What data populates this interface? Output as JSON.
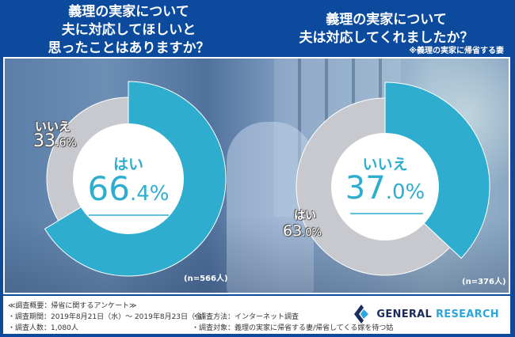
{
  "left_chart": {
    "title_lines": [
      "義理の実家について",
      "夫に対応してほしいと",
      "思ったことはありますか？"
    ],
    "highlight_label": "はい",
    "highlight_value_main": "66",
    "highlight_value_decimal": ".4%",
    "other_label": "いいえ",
    "other_value_main": "33",
    "other_value_decimal": ".6%",
    "n_label": "(n=566人)"
  },
  "right_chart": {
    "title_lines": [
      "義理の実家について",
      "夫は対応してくれましたか？"
    ],
    "subnote": "※義理の実家に帰省する妻",
    "highlight_label": "いいえ",
    "highlight_value_main": "37",
    "highlight_value_decimal": ".0%",
    "other_label": "はい",
    "other_value_main": "63",
    "other_value_decimal": ".0%",
    "n_label": "(n=376人)"
  },
  "footer": {
    "overview": "≪調査概要：帰省に関するアンケート≫",
    "period": "・調査期間：2019年8月21日（水）～ 2019年8月23日（金）",
    "respondents": "・調査人数：1,080人",
    "method": "・調査方法：インターネット調査",
    "target": "・調査対象：義理の実家に帰省する妻/帰省してくる嫁を待つ姑",
    "logo_word1": "GENERAL",
    "logo_word2": " RESEARCH"
  },
  "colors": {
    "header_blue": "#0b4a9c",
    "highlight_teal": "#2eadcf",
    "other_gray": "#c7c9cf",
    "logo_navy": "#1a2b5c",
    "logo_cyan": "#2da6d9"
  },
  "chart_data": [
    {
      "type": "pie",
      "title": "義理の実家について夫に対応してほしいと思ったことはありますか？",
      "categories": [
        "はい",
        "いいえ"
      ],
      "values": [
        66.4,
        33.6
      ],
      "unit": "%",
      "n": 566,
      "annotations": [
        "(n=566人)"
      ]
    },
    {
      "type": "pie",
      "title": "義理の実家について夫は対応してくれましたか？",
      "subtitle": "※義理の実家に帰省する妻",
      "categories": [
        "いいえ",
        "はい"
      ],
      "values": [
        37.0,
        63.0
      ],
      "unit": "%",
      "n": 376,
      "annotations": [
        "(n=376人)"
      ]
    }
  ]
}
